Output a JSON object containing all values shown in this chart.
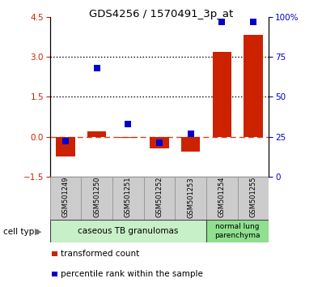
{
  "title": "GDS4256 / 1570491_3p_at",
  "samples": [
    "GSM501249",
    "GSM501250",
    "GSM501251",
    "GSM501252",
    "GSM501253",
    "GSM501254",
    "GSM501255"
  ],
  "transformed_count": [
    -0.75,
    0.2,
    -0.05,
    -0.45,
    -0.55,
    3.2,
    3.85
  ],
  "percentile_rank": [
    22,
    68,
    33,
    21,
    27,
    97,
    97
  ],
  "ylim_left": [
    -1.5,
    4.5
  ],
  "ylim_right": [
    0,
    100
  ],
  "yticks_left": [
    -1.5,
    0,
    1.5,
    3,
    4.5
  ],
  "yticks_right": [
    0,
    25,
    50,
    75,
    100
  ],
  "bar_color": "#cc2200",
  "dot_color": "#0000cc",
  "group1_label": "caseous TB granulomas",
  "group1_indices": [
    0,
    1,
    2,
    3,
    4
  ],
  "group2_label": "normal lung\nparenchyma",
  "group2_indices": [
    5,
    6
  ],
  "group1_color": "#c8f0c8",
  "group2_color": "#90e090",
  "cell_type_label": "cell type",
  "legend1": "transformed count",
  "legend2": "percentile rank within the sample",
  "bar_width": 0.6,
  "dot_size": 40,
  "label_box_color": "#cccccc",
  "label_box_edge": "#999999"
}
